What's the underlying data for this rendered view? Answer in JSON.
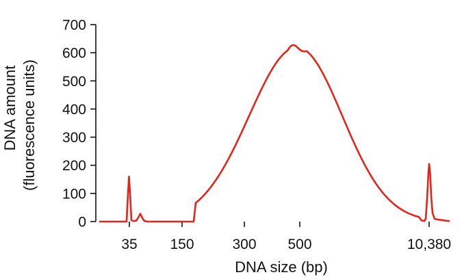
{
  "chart_data": {
    "type": "line",
    "xlabel": "DNA size (bp)",
    "ylabel_lines": [
      "DNA amount",
      "(fluorescence units)"
    ],
    "ylim": [
      0,
      700
    ],
    "y_ticks": [
      0,
      100,
      200,
      300,
      400,
      500,
      600,
      700
    ],
    "x_tick_labels": [
      "35",
      "150",
      "300",
      "500",
      "10,380"
    ],
    "line_color": "#e4231b",
    "grid": false,
    "legend": "none",
    "series": [
      {
        "x": [
          "35",
          "150",
          "300",
          "500",
          "10,380"
        ],
        "y": [
          160,
          0,
          325,
          620,
          205
        ]
      }
    ]
  }
}
